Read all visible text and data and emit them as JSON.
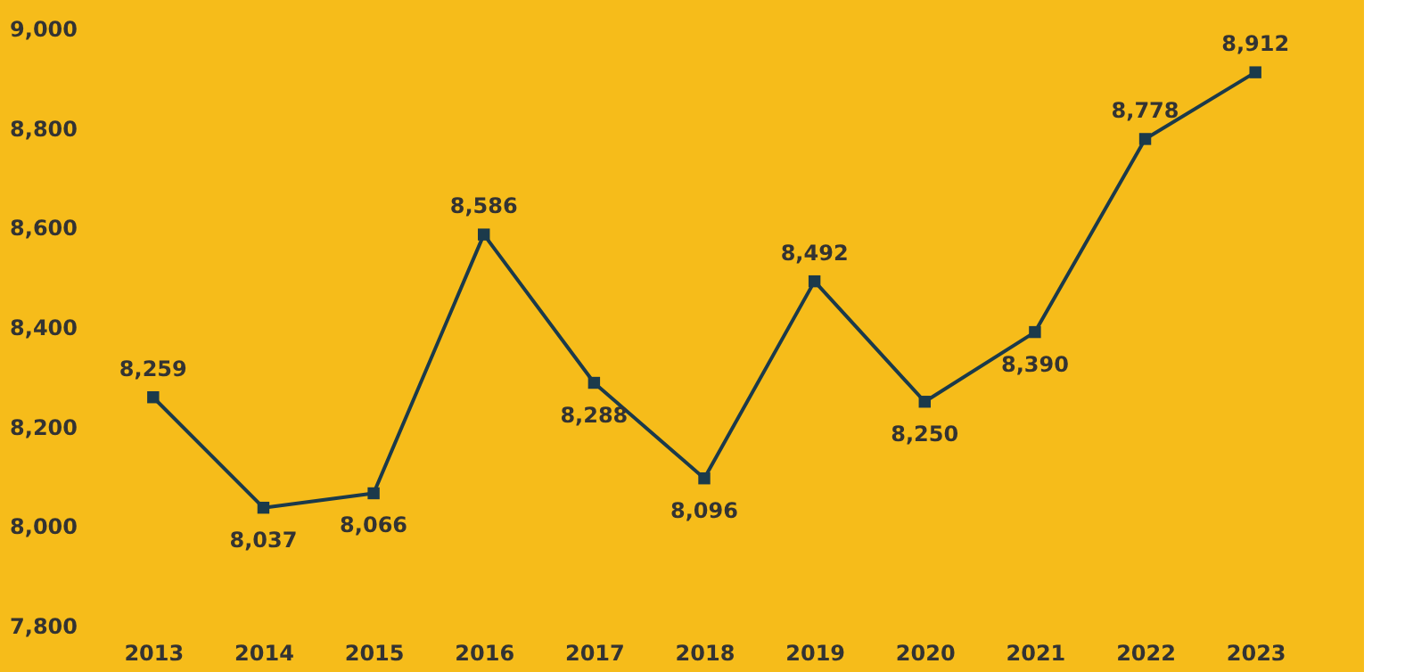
{
  "chart_data": {
    "type": "line",
    "categories": [
      "2013",
      "2014",
      "2015",
      "2016",
      "2017",
      "2018",
      "2019",
      "2020",
      "2021",
      "2022",
      "2023"
    ],
    "series": [
      {
        "color": "#1b3a4b",
        "values": [
          8259,
          8037,
          8066,
          8586,
          8288,
          8096,
          8492,
          8250,
          8390,
          8778,
          8912
        ],
        "value_labels": [
          "8,259",
          "8,037",
          "8,066",
          "8,586",
          "8,288",
          "8,096",
          "8,492",
          "8,250",
          "8,390",
          "8,778",
          "8,912"
        ]
      }
    ],
    "ylim": [
      7800,
      9000
    ],
    "yticks": [
      {
        "value": 7800,
        "label": "7,800"
      },
      {
        "value": 8000,
        "label": "8,000"
      },
      {
        "value": 8200,
        "label": "8,200"
      },
      {
        "value": 8400,
        "label": "8,400"
      },
      {
        "value": 8600,
        "label": "8,600"
      },
      {
        "value": 8800,
        "label": "8,800"
      },
      {
        "value": 9000,
        "label": "9,000"
      }
    ],
    "grid": false,
    "marker": "square",
    "line_style": "solid"
  }
}
